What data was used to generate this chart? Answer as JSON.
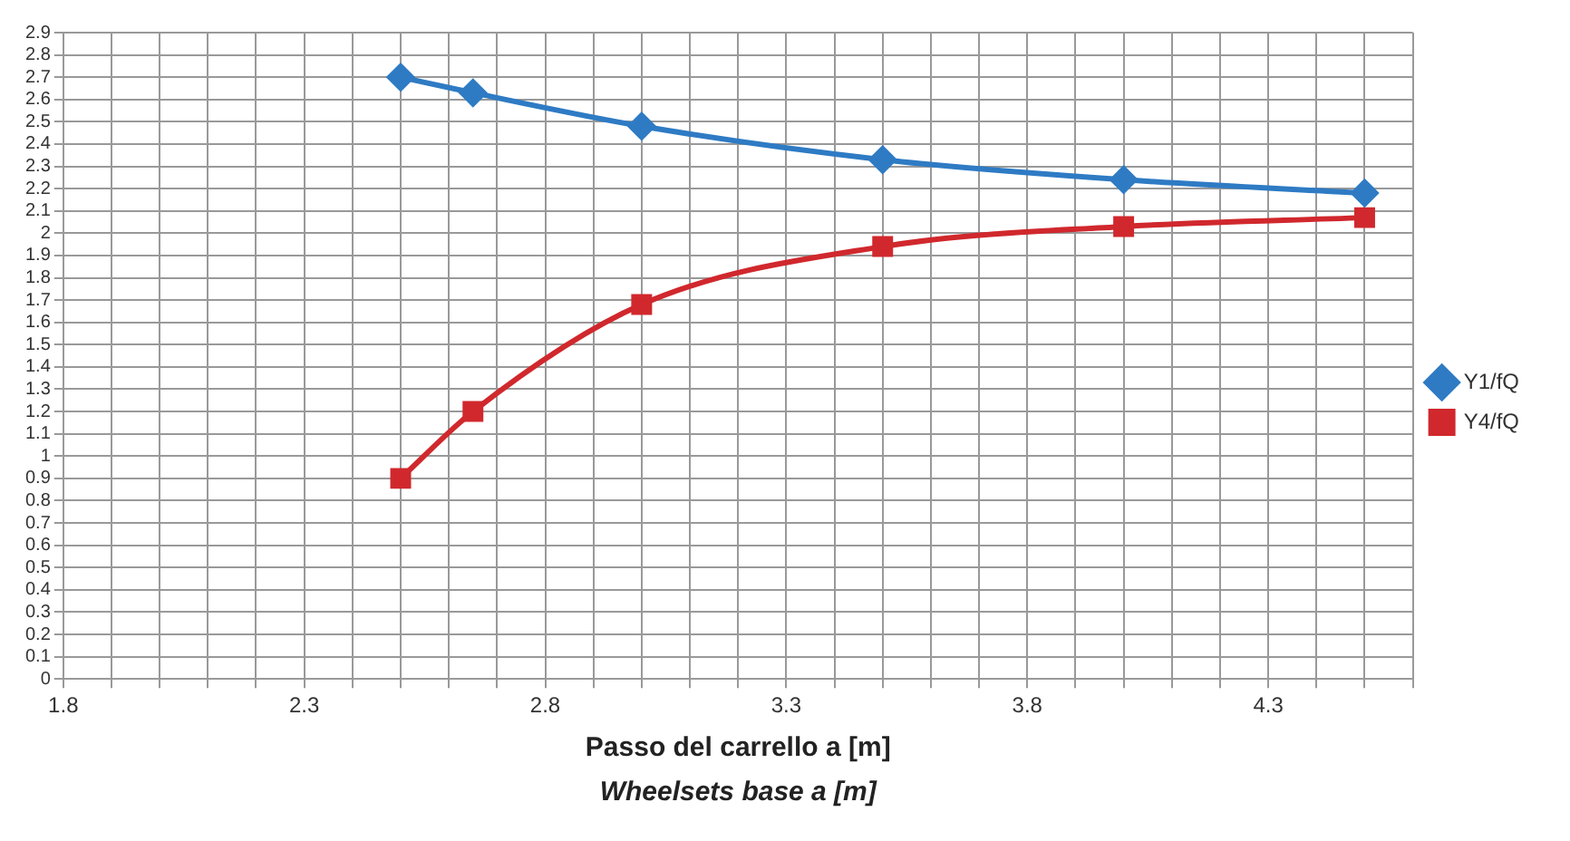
{
  "chart_data": {
    "type": "line",
    "xlabel": "Passo del carrello a [m]",
    "annotations": [
      "Wheelsets base a [m]"
    ],
    "xlim": [
      1.8,
      4.6
    ],
    "xticks": [
      1.8,
      {
        "value": 1.9,
        "label": null
      },
      {
        "value": 2.0,
        "label": null
      },
      {
        "value": 2.1,
        "label": null
      },
      {
        "value": 2.2,
        "label": null
      },
      2.3,
      {
        "value": 2.4,
        "label": null
      },
      {
        "value": 2.5,
        "label": null
      },
      {
        "value": 2.6,
        "label": null
      },
      {
        "value": 2.7,
        "label": null
      },
      2.8,
      {
        "value": 2.9,
        "label": null
      },
      {
        "value": 3.0,
        "label": null
      },
      {
        "value": 3.1,
        "label": null
      },
      {
        "value": 3.2,
        "label": null
      },
      3.3,
      {
        "value": 3.4,
        "label": null
      },
      {
        "value": 3.5,
        "label": null
      },
      {
        "value": 3.6,
        "label": null
      },
      {
        "value": 3.7,
        "label": null
      },
      3.8,
      {
        "value": 3.9,
        "label": null
      },
      {
        "value": 4.0,
        "label": null
      },
      {
        "value": 4.1,
        "label": null
      },
      {
        "value": 4.2,
        "label": null
      },
      4.3,
      {
        "value": 4.4,
        "label": null
      },
      {
        "value": 4.5,
        "label": null
      },
      {
        "value": 4.6,
        "label": null
      }
    ],
    "ylim": [
      0,
      2.9
    ],
    "yticks": [
      0,
      0.1,
      0.2,
      0.3,
      0.4,
      0.5,
      0.6,
      0.7,
      0.8,
      0.9,
      1,
      1.1,
      1.2,
      1.3,
      1.4,
      1.5,
      1.6,
      1.7,
      1.8,
      1.9,
      2,
      2.1,
      2.2,
      2.3,
      2.4,
      2.5,
      2.6,
      2.7,
      2.8,
      2.9
    ],
    "grid": true,
    "legend": "right",
    "line_style": "solid",
    "series": [
      {
        "name": "Y1/fQ",
        "color": "#2e7bc4",
        "marker": "diamond",
        "x": [
          2.5,
          2.65,
          3.0,
          3.5,
          4.0,
          4.5
        ],
        "values": [
          2.7,
          2.63,
          2.48,
          2.33,
          2.24,
          2.18
        ]
      },
      {
        "name": "Y4/fQ",
        "color": "#d0282d",
        "marker": "square",
        "x": [
          2.5,
          2.65,
          3.0,
          3.5,
          4.0,
          4.5
        ],
        "values": [
          0.9,
          1.2,
          1.68,
          1.94,
          2.03,
          2.07
        ]
      }
    ]
  }
}
